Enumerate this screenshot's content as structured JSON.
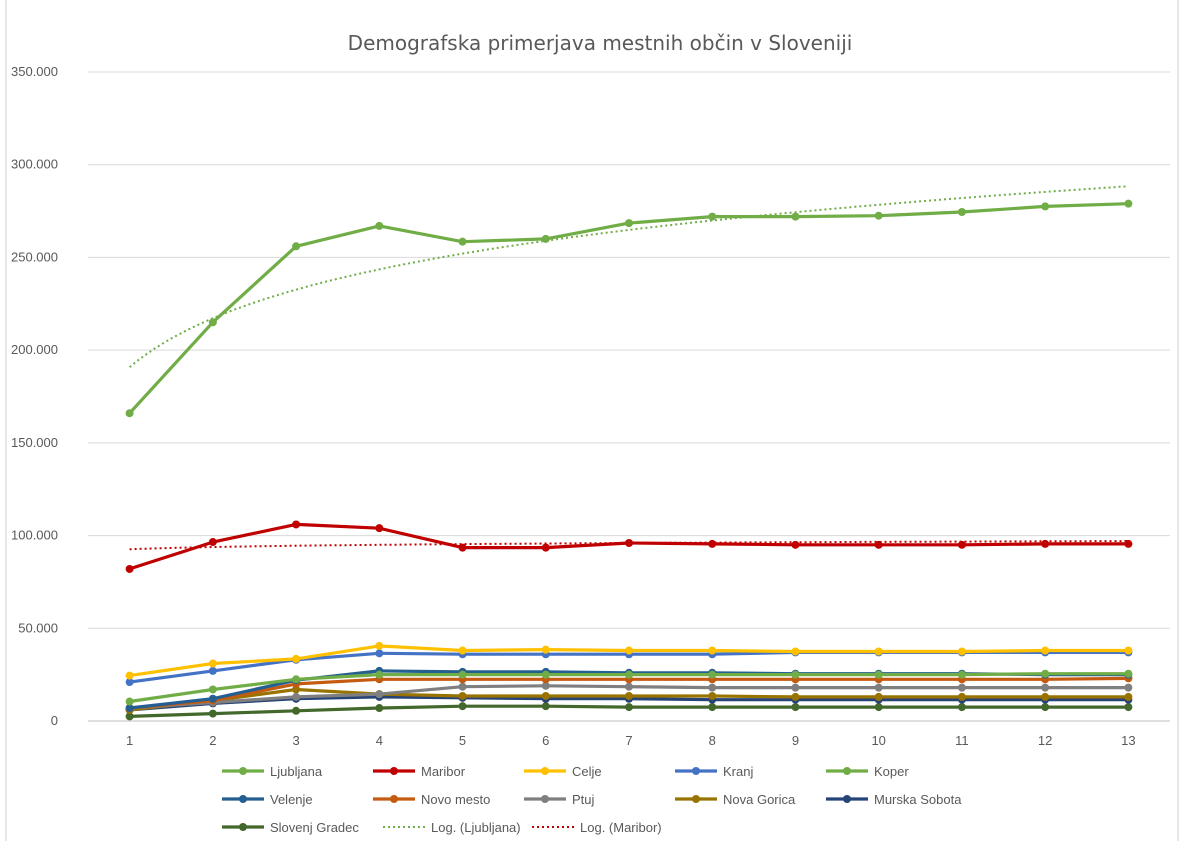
{
  "chart_data": {
    "type": "line",
    "title": "Demografska primerjava mestnih občin v Sloveniji",
    "xlabel": "",
    "ylabel": "",
    "categories": [
      "1",
      "2",
      "3",
      "4",
      "5",
      "6",
      "7",
      "8",
      "9",
      "10",
      "11",
      "12",
      "13"
    ],
    "yticks": [
      "0",
      "50.000",
      "100.000",
      "150.000",
      "200.000",
      "250.000",
      "300.000",
      "350.000"
    ],
    "ylim": [
      0,
      350000
    ],
    "grid": true,
    "legend_position": "bottom",
    "series": [
      {
        "name": "Ljubljana",
        "color": "#70AD47",
        "values": [
          166000,
          215000,
          256000,
          267000,
          258500,
          260000,
          268500,
          272000,
          272000,
          272500,
          274500,
          277500,
          279000
        ]
      },
      {
        "name": "Maribor",
        "color": "#C00000",
        "values": [
          82000,
          96500,
          106000,
          104000,
          93500,
          93500,
          96000,
          95500,
          95000,
          95000,
          95000,
          95500,
          95500
        ]
      },
      {
        "name": "Celje",
        "color": "#FFC000",
        "values": [
          24500,
          31000,
          33500,
          40500,
          38000,
          38500,
          38000,
          38000,
          37500,
          37500,
          37500,
          38000,
          38000
        ]
      },
      {
        "name": "Kranj",
        "color": "#4472C4",
        "values": [
          21000,
          27000,
          33000,
          36500,
          36000,
          36000,
          36000,
          36000,
          37000,
          37000,
          37000,
          37000,
          37000
        ]
      },
      {
        "name": "Koper",
        "color": "#70AD47",
        "values": [
          10500,
          17000,
          22500,
          25000,
          25000,
          25000,
          25000,
          25000,
          25000,
          25000,
          25000,
          25500,
          25500
        ]
      },
      {
        "name": "Velenje",
        "color": "#255E91",
        "values": [
          7000,
          12000,
          22000,
          27000,
          26500,
          26500,
          26000,
          26000,
          25500,
          25500,
          25500,
          25000,
          25000
        ]
      },
      {
        "name": "Novo mesto",
        "color": "#C55A11",
        "values": [
          7000,
          11000,
          20000,
          22500,
          22500,
          22500,
          22500,
          22500,
          22500,
          22500,
          22500,
          22500,
          23000
        ]
      },
      {
        "name": "Ptuj",
        "color": "#7F7F7F",
        "values": [
          7000,
          10000,
          13000,
          14500,
          18500,
          19000,
          18500,
          18000,
          18000,
          18000,
          18000,
          18000,
          18000
        ]
      },
      {
        "name": "Nova Gorica",
        "color": "#997300",
        "values": [
          6000,
          11000,
          17000,
          14500,
          13500,
          13500,
          13500,
          13500,
          13000,
          13000,
          13000,
          13000,
          13000
        ]
      },
      {
        "name": "Murska Sobota",
        "color": "#264478",
        "values": [
          6000,
          9500,
          12000,
          13000,
          12500,
          12000,
          12000,
          11500,
          11500,
          11500,
          11500,
          11500,
          11500
        ]
      },
      {
        "name": "Slovenj Gradec",
        "color": "#43682B",
        "values": [
          2500,
          4000,
          5500,
          7000,
          8000,
          8000,
          7500,
          7500,
          7500,
          7500,
          7500,
          7500,
          7500
        ]
      }
    ],
    "trendlines": [
      {
        "name": "Log. (Ljubljana)",
        "color": "#70AD47",
        "type": "logarithmic",
        "of": "Ljubljana"
      },
      {
        "name": "Log. (Maribor)",
        "color": "#C00000",
        "type": "logarithmic",
        "of": "Maribor"
      }
    ]
  }
}
